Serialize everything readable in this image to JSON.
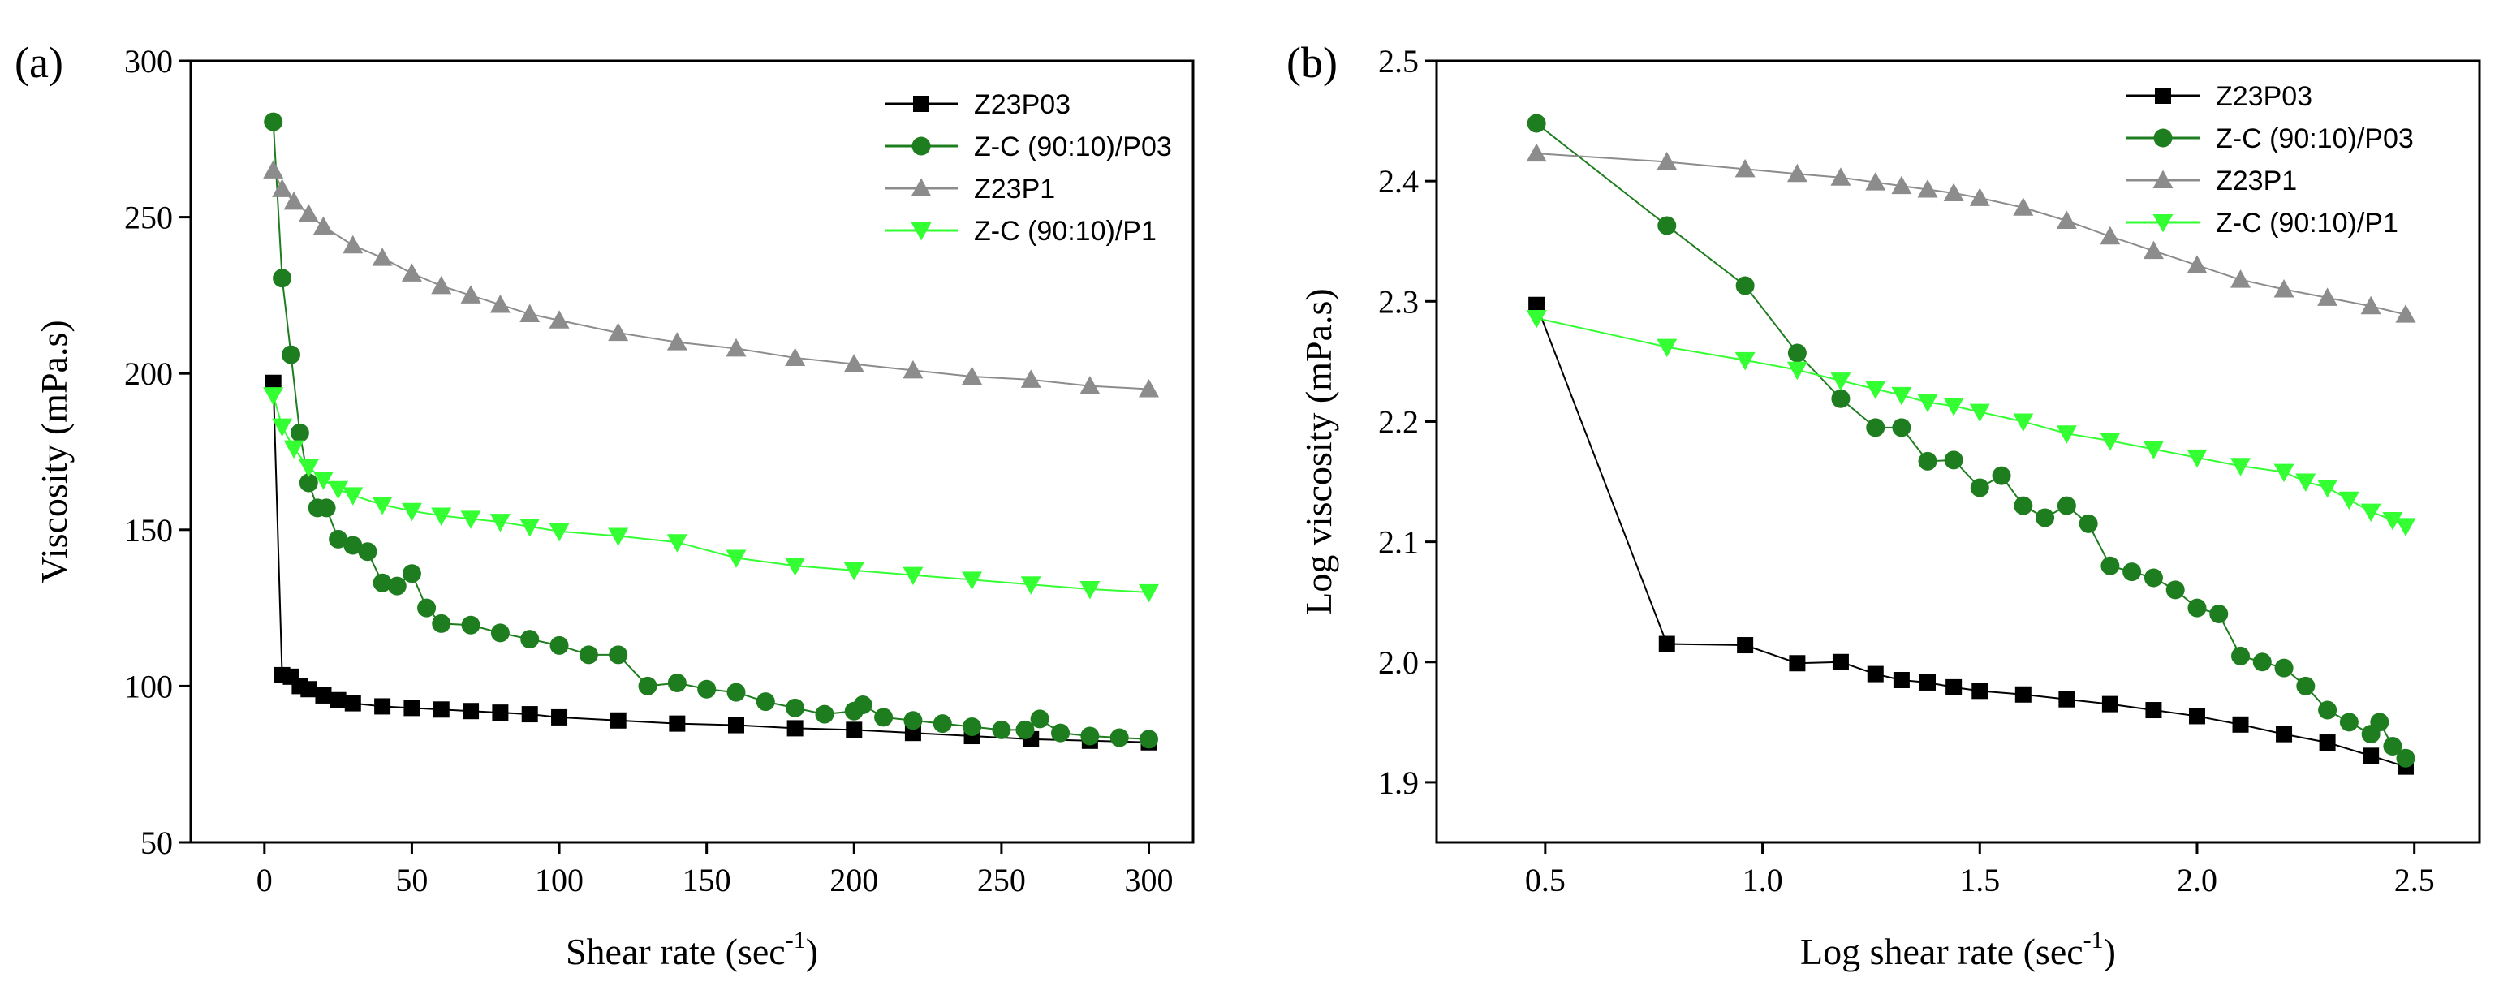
{
  "chart_data": [
    {
      "panel_label": "(a)",
      "type": "scatter",
      "xlabel": "Shear rate (sec",
      "xlabel_sup": "-1",
      "xlabel_close": ")",
      "ylabel": "Viscosity (mPa.s)",
      "xlim": [
        -25,
        315
      ],
      "ylim": [
        50,
        300
      ],
      "xticks": [
        0,
        50,
        100,
        150,
        200,
        250,
        300
      ],
      "yticks": [
        50,
        100,
        150,
        200,
        250,
        300
      ],
      "xtick_labels": [
        "0",
        "50",
        "100",
        "150",
        "200",
        "250",
        "300"
      ],
      "ytick_labels": [
        "50",
        "100",
        "150",
        "200",
        "250",
        "300"
      ],
      "legend_position": "top-right",
      "series": [
        {
          "name": "Z23P03",
          "color": "#000000",
          "marker": "square",
          "x": [
            3,
            6,
            9,
            12,
            15,
            20,
            25,
            30,
            40,
            50,
            60,
            70,
            80,
            90,
            100,
            120,
            140,
            160,
            180,
            200,
            220,
            240,
            260,
            280,
            300
          ],
          "y": [
            197,
            103.5,
            103,
            100,
            99,
            97,
            95.5,
            94.5,
            93.5,
            93,
            92.5,
            92,
            91.5,
            91,
            90,
            89,
            88,
            87.5,
            86.5,
            86,
            85,
            84,
            83,
            82.5,
            82
          ]
        },
        {
          "name": "Z-C (90:10)/P03",
          "color": "#1e7d1e",
          "marker": "circle",
          "x": [
            3,
            6,
            9,
            12,
            15,
            18,
            21,
            25,
            30,
            35,
            40,
            45,
            50,
            55,
            60,
            70,
            80,
            90,
            100,
            110,
            120,
            130,
            140,
            150,
            160,
            170,
            180,
            190,
            200,
            203,
            210,
            220,
            230,
            240,
            250,
            258,
            263,
            270,
            280,
            290,
            300
          ],
          "y": [
            280.5,
            230.5,
            206,
            181,
            165,
            157,
            157,
            147,
            145,
            143,
            133,
            132,
            136,
            125,
            120,
            119.5,
            117,
            115,
            113,
            110,
            110,
            100,
            101,
            99,
            98,
            95,
            93,
            91,
            92,
            94,
            90,
            89,
            88,
            87,
            86,
            86,
            89.5,
            85,
            84,
            83.5,
            83
          ]
        },
        {
          "name": "Z23P1",
          "color": "#8c8c8c",
          "marker": "triangle",
          "x": [
            3,
            6,
            10,
            15,
            20,
            30,
            40,
            50,
            60,
            70,
            80,
            90,
            100,
            120,
            140,
            160,
            180,
            200,
            220,
            240,
            260,
            280,
            300
          ],
          "y": [
            265,
            259,
            255,
            251,
            247,
            241,
            237,
            232,
            228,
            225,
            222,
            219,
            217,
            213,
            210,
            208,
            205,
            203,
            201,
            199,
            198,
            196,
            195
          ]
        },
        {
          "name": "Z-C (90:10)/P1",
          "color": "#33ff33",
          "marker": "triangle-down",
          "x": [
            3,
            6,
            10,
            15,
            20,
            25,
            30,
            40,
            50,
            60,
            70,
            80,
            90,
            100,
            120,
            140,
            160,
            180,
            200,
            220,
            240,
            260,
            280,
            300
          ],
          "y": [
            193,
            183,
            176,
            170,
            166,
            163,
            161,
            158,
            156,
            154.5,
            153.5,
            152.5,
            151,
            149.5,
            148,
            146,
            141,
            138.5,
            137,
            135.5,
            134,
            132.5,
            131,
            130
          ]
        }
      ]
    },
    {
      "panel_label": "(b)",
      "type": "scatter",
      "xlabel": "Log shear rate (sec",
      "xlabel_sup": "-1",
      "xlabel_close": ")",
      "ylabel": "Log viscosity (mPa.s)",
      "xlim": [
        0.25,
        2.65
      ],
      "ylim": [
        1.85,
        2.5
      ],
      "xticks": [
        0.5,
        1.0,
        1.5,
        2.0,
        2.5
      ],
      "yticks": [
        1.9,
        2.0,
        2.1,
        2.2,
        2.3,
        2.4,
        2.5
      ],
      "xtick_labels": [
        "0.5",
        "1.0",
        "1.5",
        "2.0",
        "2.5"
      ],
      "ytick_labels": [
        "1.9",
        "2.0",
        "2.1",
        "2.2",
        "2.3",
        "2.4",
        "2.5"
      ],
      "legend_position": "top-right",
      "series": [
        {
          "name": "Z23P03",
          "color": "#000000",
          "marker": "square",
          "x": [
            0.48,
            0.78,
            0.96,
            1.08,
            1.18,
            1.26,
            1.32,
            1.38,
            1.44,
            1.5,
            1.6,
            1.7,
            1.8,
            1.9,
            2.0,
            2.1,
            2.2,
            2.3,
            2.4,
            2.48
          ],
          "y": [
            2.297,
            2.015,
            2.014,
            1.999,
            2.0,
            1.99,
            1.985,
            1.983,
            1.979,
            1.976,
            1.973,
            1.969,
            1.965,
            1.96,
            1.955,
            1.948,
            1.94,
            1.933,
            1.922,
            1.913
          ]
        },
        {
          "name": "Z-C (90:10)/P03",
          "color": "#1e7d1e",
          "marker": "circle",
          "x": [
            0.48,
            0.78,
            0.96,
            1.08,
            1.18,
            1.26,
            1.32,
            1.38,
            1.44,
            1.5,
            1.55,
            1.6,
            1.65,
            1.7,
            1.75,
            1.8,
            1.85,
            1.9,
            1.95,
            2.0,
            2.05,
            2.1,
            2.15,
            2.2,
            2.25,
            2.3,
            2.35,
            2.4,
            2.42,
            2.45,
            2.48
          ],
          "y": [
            2.448,
            2.363,
            2.313,
            2.257,
            2.219,
            2.195,
            2.195,
            2.167,
            2.168,
            2.145,
            2.155,
            2.13,
            2.12,
            2.13,
            2.115,
            2.08,
            2.075,
            2.07,
            2.06,
            2.045,
            2.04,
            2.005,
            2.0,
            1.995,
            1.98,
            1.96,
            1.95,
            1.94,
            1.95,
            1.93,
            1.92
          ]
        },
        {
          "name": "Z23P1",
          "color": "#8c8c8c",
          "marker": "triangle",
          "x": [
            0.48,
            0.78,
            0.96,
            1.08,
            1.18,
            1.26,
            1.32,
            1.38,
            1.44,
            1.5,
            1.6,
            1.7,
            1.8,
            1.9,
            2.0,
            2.1,
            2.2,
            2.3,
            2.4,
            2.48
          ],
          "y": [
            2.423,
            2.416,
            2.41,
            2.406,
            2.403,
            2.399,
            2.396,
            2.393,
            2.39,
            2.386,
            2.378,
            2.367,
            2.354,
            2.342,
            2.33,
            2.318,
            2.31,
            2.303,
            2.296,
            2.289
          ]
        },
        {
          "name": "Z-C (90:10)/P1",
          "color": "#33ff33",
          "marker": "triangle-down",
          "x": [
            0.48,
            0.78,
            0.96,
            1.08,
            1.18,
            1.26,
            1.32,
            1.38,
            1.44,
            1.5,
            1.6,
            1.7,
            1.8,
            1.9,
            2.0,
            2.1,
            2.2,
            2.25,
            2.3,
            2.35,
            2.4,
            2.45,
            2.48
          ],
          "y": [
            2.286,
            2.262,
            2.251,
            2.243,
            2.234,
            2.227,
            2.222,
            2.216,
            2.213,
            2.208,
            2.2,
            2.19,
            2.184,
            2.177,
            2.17,
            2.163,
            2.158,
            2.15,
            2.145,
            2.135,
            2.125,
            2.118,
            2.113
          ]
        }
      ]
    }
  ]
}
